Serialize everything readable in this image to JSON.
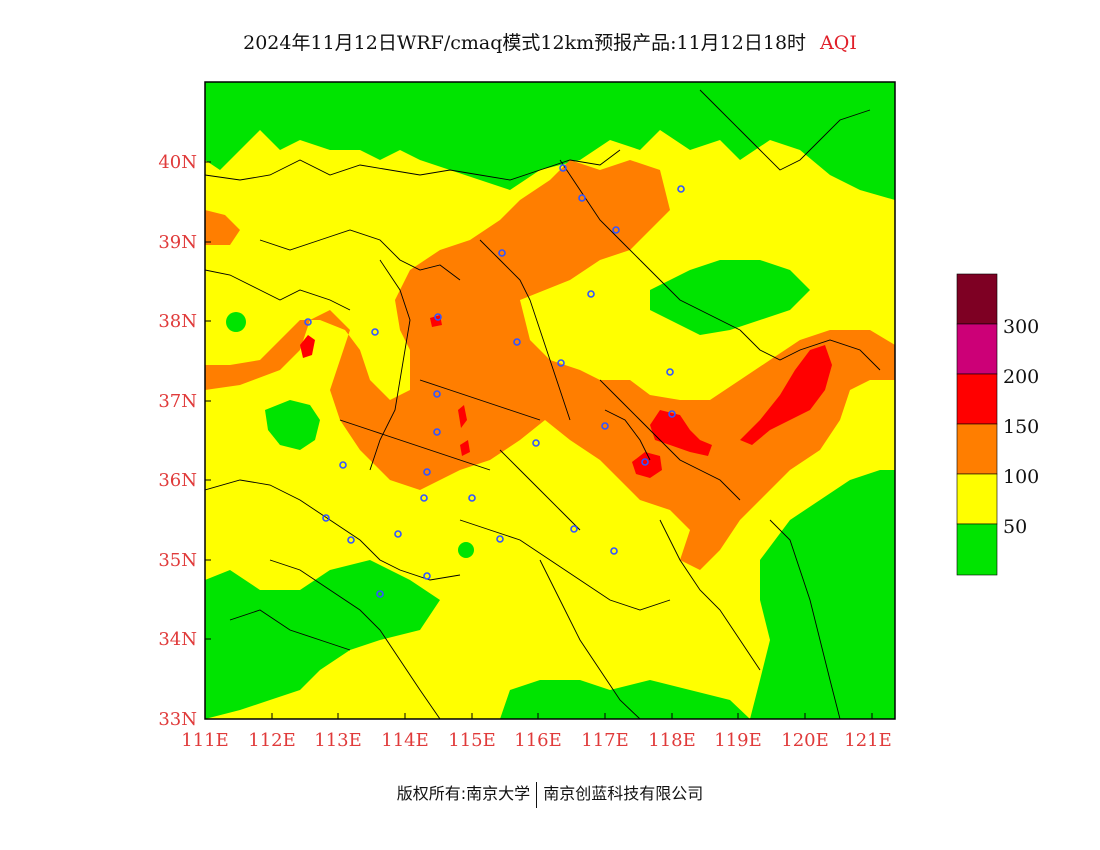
{
  "header": {
    "title": "2024年11月12日WRF/cmaq模式12km预报产品:11月12日18时",
    "tag": "AQI"
  },
  "axes": {
    "lon_labels": [
      "111E",
      "112E",
      "113E",
      "114E",
      "115E",
      "116E",
      "117E",
      "118E",
      "119E",
      "120E",
      "121E"
    ],
    "lat_labels": [
      "40N",
      "39N",
      "38N",
      "37N",
      "36N",
      "35N",
      "34N",
      "33N"
    ]
  },
  "legend": {
    "title": "AQI",
    "levels": [
      {
        "label": "",
        "color": "#00e400"
      },
      {
        "label": "50",
        "color": "#ffff00"
      },
      {
        "label": "100",
        "color": "#ff7e00"
      },
      {
        "label": "150",
        "color": "#ff0000"
      },
      {
        "label": "200",
        "color": "#cc0077"
      },
      {
        "label": "300",
        "color": "#7e0023"
      }
    ]
  },
  "colors": {
    "good": "#00e400",
    "moderate": "#ffff00",
    "usg": "#ff7e00",
    "unhealthy": "#ff0000",
    "very_unhealthy": "#cc0077",
    "hazardous": "#7e0023",
    "boundary": "#000000",
    "city_marker": "#3355ff"
  },
  "footer": {
    "left": "版权所有:南京大学",
    "right": "南京创蓝科技有限公司"
  }
}
